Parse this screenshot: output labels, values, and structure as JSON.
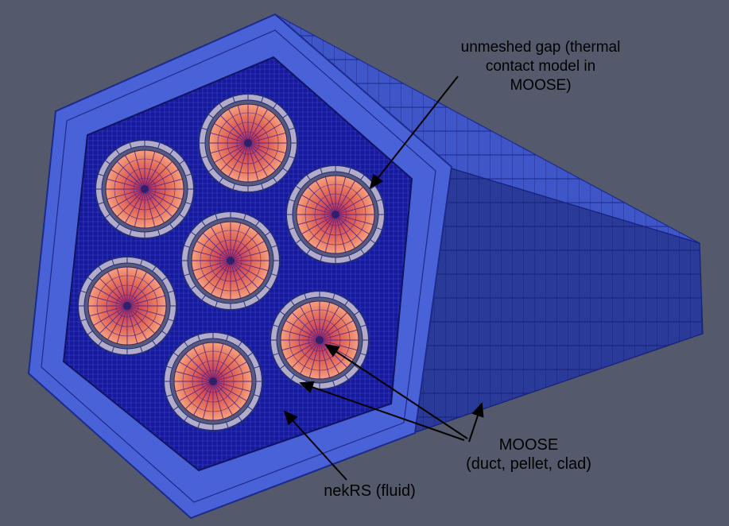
{
  "annotations": {
    "gap": {
      "line1": "unmeshed gap (thermal",
      "line2": "contact model in",
      "line3": "MOOSE)"
    },
    "moose": {
      "line1": "MOOSE",
      "line2": "(duct, pellet, clad)"
    },
    "nekrs": {
      "line1": "nekRS (fluid)"
    }
  },
  "colors": {
    "background": "#545a6c",
    "duct_face": "#4a62d8",
    "duct_edge": "#1c2a8c",
    "fluid": "#15199e",
    "clad": "#b2acc8",
    "pellet_center": "#b0256e",
    "pellet_outer": "#f08e73",
    "arrow": "#000000"
  }
}
